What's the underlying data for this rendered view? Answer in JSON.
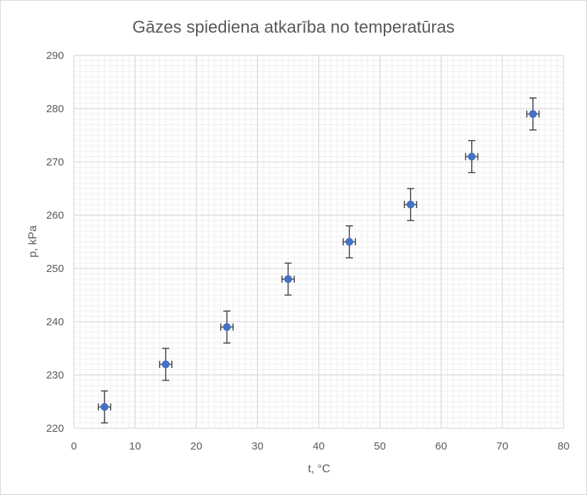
{
  "chart_data": {
    "type": "scatter",
    "title": "Gāzes spiediena atkarība no temperatūras",
    "xlabel": "t, °C",
    "ylabel": "p, kPa",
    "xlim": [
      0,
      80
    ],
    "ylim": [
      220,
      290
    ],
    "x_ticks": [
      0,
      10,
      20,
      30,
      40,
      50,
      60,
      70,
      80
    ],
    "y_ticks": [
      220,
      230,
      240,
      250,
      260,
      270,
      280,
      290
    ],
    "grid": "major and minor",
    "legend": "none",
    "marker_color": "#4472C4",
    "error_bar_color": "#404040",
    "x_error": 1,
    "y_error": 3,
    "series": [
      {
        "points": [
          {
            "x": 5,
            "y": 224
          },
          {
            "x": 15,
            "y": 232
          },
          {
            "x": 25,
            "y": 239
          },
          {
            "x": 35,
            "y": 248
          },
          {
            "x": 45,
            "y": 255
          },
          {
            "x": 55,
            "y": 262
          },
          {
            "x": 65,
            "y": 271
          },
          {
            "x": 75,
            "y": 279
          }
        ]
      }
    ]
  }
}
